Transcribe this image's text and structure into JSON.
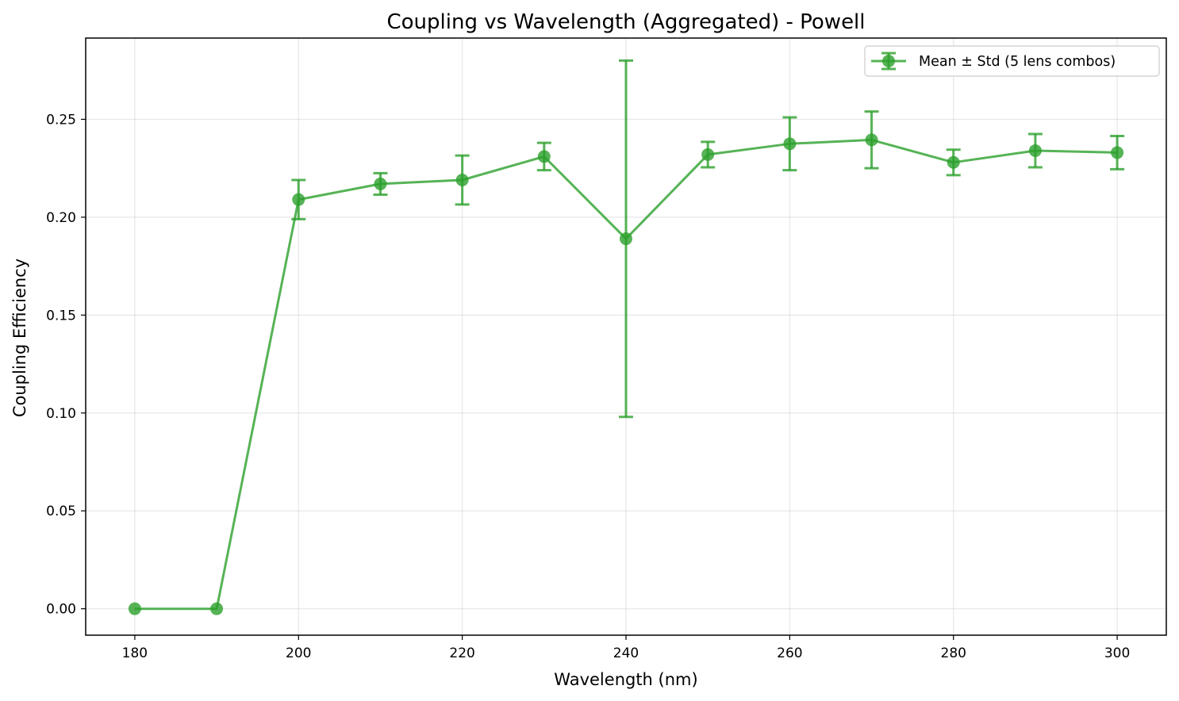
{
  "chart_data": {
    "type": "line",
    "title": "Coupling vs Wavelength (Aggregated) - Powell",
    "xlabel": "Wavelength (nm)",
    "ylabel": "Coupling Efficiency",
    "xlim": [
      174,
      306
    ],
    "ylim": [
      -0.0135,
      0.2915
    ],
    "xticks": [
      180,
      200,
      220,
      240,
      260,
      280,
      300
    ],
    "xtick_labels": [
      "180",
      "200",
      "220",
      "240",
      "260",
      "280",
      "300"
    ],
    "yticks": [
      0.0,
      0.05,
      0.1,
      0.15,
      0.2,
      0.25
    ],
    "ytick_labels": [
      "0.00",
      "0.05",
      "0.10",
      "0.15",
      "0.20",
      "0.25"
    ],
    "grid": true,
    "legend_position": "top-right",
    "color": "#2ca02c",
    "series": [
      {
        "name": "Mean ± Std (5 lens combos)",
        "x": [
          180,
          190,
          200,
          210,
          220,
          230,
          240,
          250,
          260,
          270,
          280,
          290,
          300
        ],
        "y": [
          0.0,
          0.0,
          0.209,
          0.217,
          0.219,
          0.231,
          0.189,
          0.232,
          0.2375,
          0.2395,
          0.228,
          0.234,
          0.233
        ],
        "err": [
          0.0,
          0.0,
          0.01,
          0.0055,
          0.0125,
          0.007,
          0.091,
          0.0065,
          0.0135,
          0.0145,
          0.0065,
          0.0085,
          0.0085
        ]
      }
    ]
  }
}
